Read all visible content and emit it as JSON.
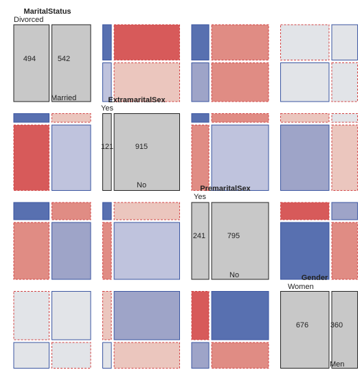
{
  "chart_data": {
    "type": "mosaic-pairs",
    "variables": [
      {
        "name": "MaritalStatus",
        "levels": [
          "Divorced",
          "Married"
        ],
        "counts": [
          494,
          542
        ]
      },
      {
        "name": "ExtramaritalSex",
        "levels": [
          "Yes",
          "No"
        ],
        "counts": [
          121,
          915
        ]
      },
      {
        "name": "PremaritalSex",
        "levels": [
          "Yes",
          "No"
        ],
        "counts": [
          241,
          795
        ]
      },
      {
        "name": "Gender",
        "levels": [
          "Women",
          "Men"
        ],
        "counts": [
          676,
          360
        ]
      }
    ],
    "colors": {
      "neg_strong": "#D75A5A",
      "neg_mid": "#E08C84",
      "neg_light": "#EBC6BE",
      "pos_strong": "#5870B0",
      "pos_mid": "#9EA4C8",
      "pos_light": "#BFC3DD",
      "neutral": "#E2E4E8",
      "diagonal": "#C8C8C8",
      "pos_border": "#3A55A0",
      "neg_border": "#D04040"
    },
    "panels": [
      {
        "row": 1,
        "col": 2,
        "cells": [
          [
            "pos_strong",
            "pos_light"
          ],
          [
            "neg_strong",
            "neg_light"
          ]
        ]
      },
      {
        "row": 1,
        "col": 3,
        "cells": [
          [
            "pos_strong",
            "pos_mid"
          ],
          [
            "neg_mid",
            "neg_mid"
          ]
        ]
      },
      {
        "row": 1,
        "col": 4,
        "cells": [
          [
            "neutral_neg",
            "neutral_pos"
          ],
          [
            "neutral_pos",
            "neutral_neg"
          ]
        ]
      },
      {
        "row": 2,
        "col": 1,
        "cells": [
          [
            "pos_strong",
            "neg_strong"
          ],
          [
            "neg_light",
            "pos_light"
          ]
        ]
      },
      {
        "row": 2,
        "col": 3,
        "cells": [
          [
            "pos_strong",
            "neg_mid"
          ],
          [
            "neg_mid",
            "pos_light"
          ]
        ]
      },
      {
        "row": 2,
        "col": 4,
        "cells": [
          [
            "neg_light",
            "pos_mid"
          ],
          [
            "neutral",
            "neg_light"
          ]
        ]
      },
      {
        "row": 3,
        "col": 1,
        "cells": [
          [
            "pos_strong",
            "neg_mid"
          ],
          [
            "neg_mid",
            "pos_mid"
          ]
        ]
      },
      {
        "row": 3,
        "col": 2,
        "cells": [
          [
            "pos_strong",
            "neg_mid"
          ],
          [
            "neg_light",
            "pos_light"
          ]
        ]
      },
      {
        "row": 3,
        "col": 4,
        "cells": [
          [
            "neg_strong",
            "pos_strong"
          ],
          [
            "pos_mid",
            "neg_mid"
          ]
        ]
      },
      {
        "row": 4,
        "col": 1,
        "cells": [
          [
            "neutral_neg",
            "neutral_pos"
          ],
          [
            "neutral_pos",
            "neutral_neg"
          ]
        ]
      },
      {
        "row": 4,
        "col": 2,
        "cells": [
          [
            "neg_light",
            "neutral_pos"
          ],
          [
            "pos_mid",
            "neg_light"
          ]
        ]
      },
      {
        "row": 4,
        "col": 3,
        "cells": [
          [
            "neg_strong",
            "pos_mid"
          ],
          [
            "pos_strong",
            "neg_mid"
          ]
        ]
      }
    ]
  }
}
